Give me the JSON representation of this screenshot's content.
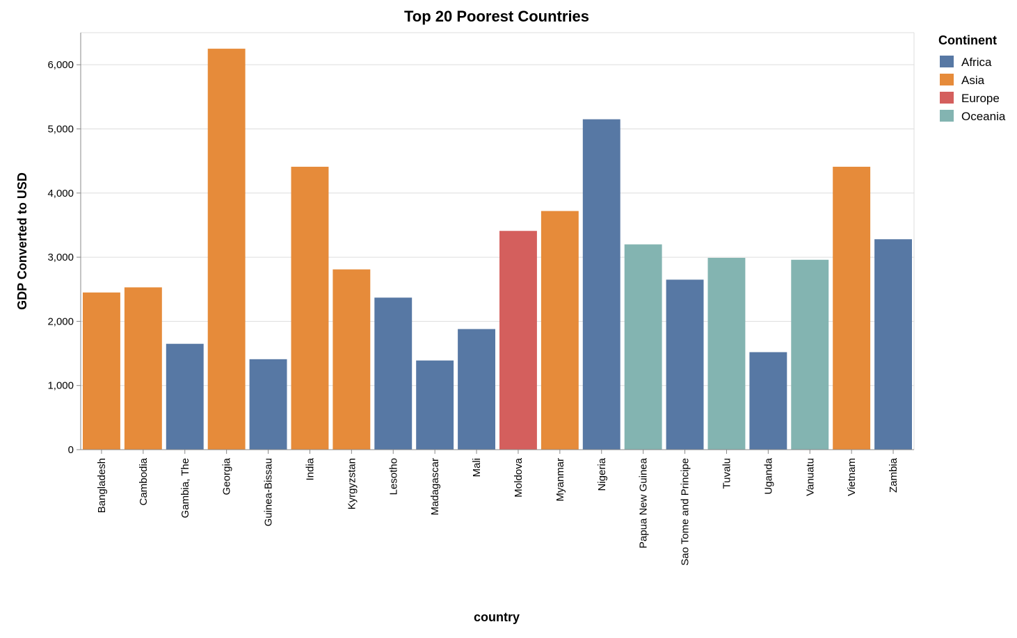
{
  "chart_data": {
    "type": "bar",
    "title": "Top 20 Poorest Countries",
    "xlabel": "country",
    "ylabel": "GDP Converted to USD",
    "ylim": [
      0,
      6500
    ],
    "yticks": [
      0,
      1000,
      2000,
      3000,
      4000,
      5000,
      6000
    ],
    "ytick_labels": [
      "0",
      "1,000",
      "2,000",
      "3,000",
      "4,000",
      "5,000",
      "6,000"
    ],
    "grid": true,
    "legend": {
      "title": "Continent",
      "position": "top-right",
      "entries": [
        {
          "name": "Africa",
          "color": "#5778a4"
        },
        {
          "name": "Asia",
          "color": "#e68b3a"
        },
        {
          "name": "Europe",
          "color": "#d45f5d"
        },
        {
          "name": "Oceania",
          "color": "#83b4b1"
        }
      ]
    },
    "categories": [
      "Bangladesh",
      "Cambodia",
      "Gambia, The",
      "Georgia",
      "Guinea-Bissau",
      "India",
      "Kyrgyzstan",
      "Lesotho",
      "Madagascar",
      "Mali",
      "Moldova",
      "Myanmar",
      "Nigeria",
      "Papua New Guinea",
      "Sao Tome and Principe",
      "Tuvalu",
      "Uganda",
      "Vanuatu",
      "Vietnam",
      "Zambia"
    ],
    "values": [
      2450,
      2530,
      1650,
      6250,
      1410,
      4410,
      2810,
      2370,
      1390,
      1880,
      3410,
      3720,
      5150,
      3200,
      2650,
      2990,
      1520,
      2960,
      4410,
      3280
    ],
    "continents": [
      "Asia",
      "Asia",
      "Africa",
      "Asia",
      "Africa",
      "Asia",
      "Asia",
      "Africa",
      "Africa",
      "Africa",
      "Europe",
      "Asia",
      "Africa",
      "Oceania",
      "Africa",
      "Oceania",
      "Africa",
      "Oceania",
      "Asia",
      "Africa"
    ]
  }
}
